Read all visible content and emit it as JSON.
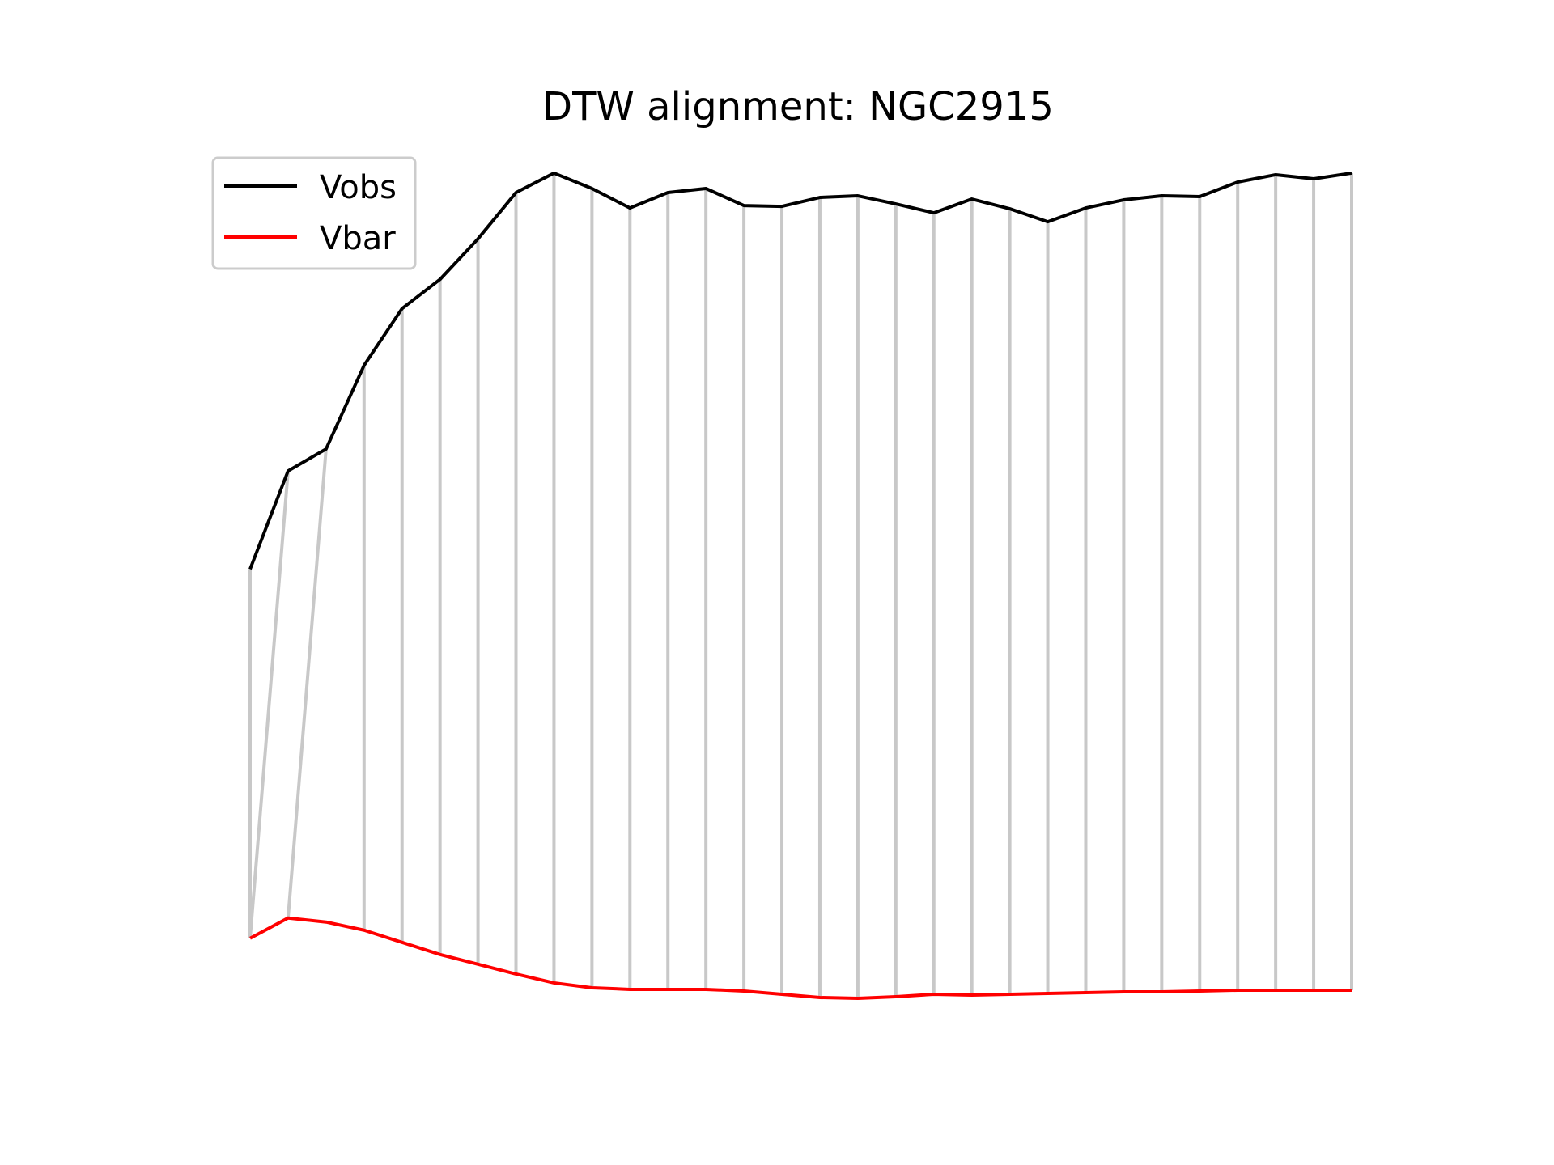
{
  "chart_data": {
    "type": "line",
    "title": "DTW alignment: NGC2915",
    "xlabel": "",
    "ylabel": "",
    "axes_visible": false,
    "grid": false,
    "legend_placement": "top-left",
    "x": [
      0,
      1,
      2,
      3,
      4,
      5,
      6,
      7,
      8,
      9,
      10,
      11,
      12,
      13,
      14,
      15,
      16,
      17,
      18,
      19,
      20,
      21,
      22,
      23,
      24,
      25,
      26,
      27,
      28,
      29
    ],
    "ylim": [
      0,
      1
    ],
    "series": [
      {
        "name": "Vobs",
        "color": "#000000",
        "values": [
          0.53,
          0.651,
          0.678,
          0.781,
          0.851,
          0.887,
          0.937,
          0.994,
          1.018,
          0.999,
          0.975,
          0.994,
          0.999,
          0.978,
          0.977,
          0.988,
          0.99,
          0.98,
          0.969,
          0.986,
          0.974,
          0.958,
          0.975,
          0.985,
          0.99,
          0.989,
          1.007,
          1.016,
          1.011,
          1.018
        ]
      },
      {
        "name": "Vbar",
        "color": "#ff0000",
        "values": [
          0.075,
          0.1,
          0.095,
          0.085,
          0.07,
          0.055,
          0.043,
          0.031,
          0.02,
          0.014,
          0.012,
          0.012,
          0.012,
          0.01,
          0.006,
          0.002,
          0.001,
          0.003,
          0.006,
          0.005,
          0.006,
          0.007,
          0.008,
          0.009,
          0.009,
          0.01,
          0.011,
          0.011,
          0.011,
          0.011
        ]
      }
    ],
    "alignment": {
      "color": "#c8c8c8",
      "pairs": [
        [
          0,
          0
        ],
        [
          1,
          0
        ],
        [
          2,
          1
        ],
        [
          3,
          3
        ],
        [
          4,
          4
        ],
        [
          5,
          5
        ],
        [
          6,
          6
        ],
        [
          7,
          7
        ],
        [
          8,
          8
        ],
        [
          9,
          9
        ],
        [
          10,
          10
        ],
        [
          11,
          11
        ],
        [
          12,
          12
        ],
        [
          13,
          13
        ],
        [
          14,
          14
        ],
        [
          15,
          15
        ],
        [
          16,
          16
        ],
        [
          17,
          17
        ],
        [
          18,
          18
        ],
        [
          19,
          19
        ],
        [
          20,
          20
        ],
        [
          21,
          21
        ],
        [
          22,
          22
        ],
        [
          23,
          23
        ],
        [
          24,
          24
        ],
        [
          25,
          25
        ],
        [
          26,
          26
        ],
        [
          27,
          27
        ],
        [
          28,
          28
        ],
        [
          29,
          29
        ]
      ]
    }
  }
}
